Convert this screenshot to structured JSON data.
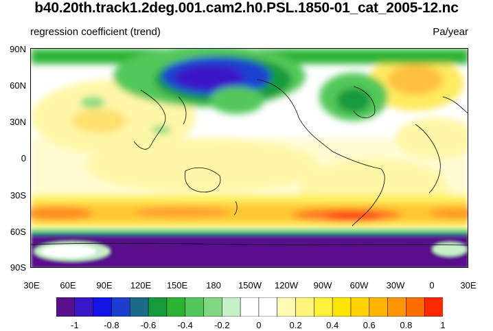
{
  "title": "b40.20th.track1.2deg.001.cam2.h0.PSL.1850-01_cat_2005-12.nc",
  "left_label": "regression coefficient (trend)",
  "right_label": "Pa/year",
  "y_ticks": [
    "90N",
    "60N",
    "30N",
    "0",
    "30S",
    "60S",
    "90S"
  ],
  "x_ticks": [
    "30E",
    "60E",
    "90E",
    "120E",
    "150E",
    "180",
    "150W",
    "120W",
    "90W",
    "60W",
    "30W",
    "0",
    "30E"
  ],
  "colorbar": {
    "colors": [
      "#5a0f8c",
      "#3a18c8",
      "#1414e6",
      "#1a3fd0",
      "#1a6a88",
      "#179a3c",
      "#2bb434",
      "#52c85a",
      "#82d880",
      "#c8f0c8",
      "#ffffff",
      "#ffffff",
      "#fffab4",
      "#fff47a",
      "#fff03a",
      "#ffe400",
      "#ffd200",
      "#ffb400",
      "#ff9600",
      "#ff6e00",
      "#ff2800"
    ],
    "labels": [
      "-1",
      "-0.8",
      "-0.6",
      "-0.4",
      "-0.2",
      "0",
      "0.2",
      "0.4",
      "0.6",
      "0.8",
      "1"
    ]
  }
}
